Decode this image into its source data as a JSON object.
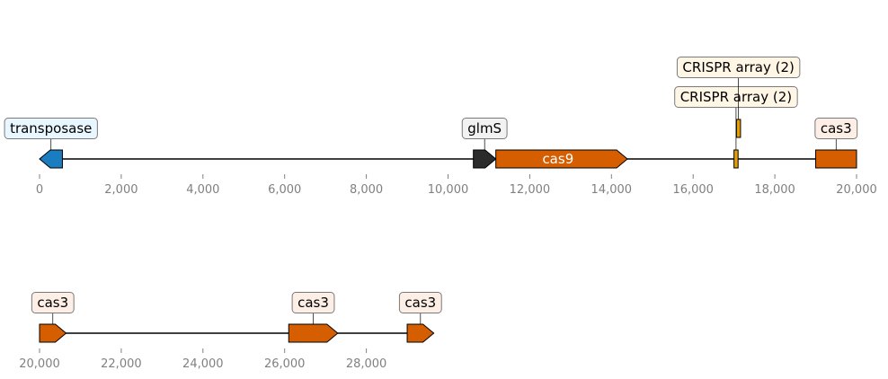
{
  "tracks": [
    {
      "range": [
        0,
        20000
      ],
      "ticks": [
        {
          "value": 0,
          "label": "0"
        },
        {
          "value": 2000,
          "label": "2,000"
        },
        {
          "value": 4000,
          "label": "4,000"
        },
        {
          "value": 6000,
          "label": "6,000"
        },
        {
          "value": 8000,
          "label": "8,000"
        },
        {
          "value": 10000,
          "label": "10,000"
        },
        {
          "value": 12000,
          "label": "12,000"
        },
        {
          "value": 14000,
          "label": "14,000"
        },
        {
          "value": 16000,
          "label": "16,000"
        },
        {
          "value": 18000,
          "label": "18,000"
        },
        {
          "value": 20000,
          "label": "20,000"
        }
      ],
      "features": [
        {
          "name": "transposase",
          "start": 0,
          "end": 560,
          "strand": -1,
          "color": "#1a7dbf",
          "label_bg": "#e8f6ff",
          "label_position": "above"
        },
        {
          "name": "glmS",
          "start": 10620,
          "end": 11170,
          "strand": 1,
          "color": "#2b2b2b",
          "label_bg": "#f2f2f2",
          "label_position": "above"
        },
        {
          "name": "cas9",
          "start": 11170,
          "end": 14390,
          "strand": 1,
          "color": "#d55e00",
          "label_bg": "",
          "label_position": "inside"
        },
        {
          "name": "CRISPR array (2)",
          "start": 17000,
          "end": 17100,
          "strand": 0,
          "color": "#e69f00",
          "label_bg": "#fff6e6",
          "label_position": "above2"
        },
        {
          "name": "CRISPR array (2)",
          "start": 17060,
          "end": 17160,
          "strand": 0,
          "color": "#e69f00",
          "label_bg": "#fff6e6",
          "label_position": "above",
          "elevated": true
        },
        {
          "name": "cas3",
          "start": 19000,
          "end": 20000,
          "strand": 0,
          "color": "#d55e00",
          "label_bg": "#fdeee6",
          "label_position": "above"
        }
      ]
    },
    {
      "range": [
        20000,
        30000
      ],
      "ticks": [
        {
          "value": 20000,
          "label": "20,000"
        },
        {
          "value": 22000,
          "label": "22,000"
        },
        {
          "value": 24000,
          "label": "24,000"
        },
        {
          "value": 26000,
          "label": "26,000"
        },
        {
          "value": 28000,
          "label": "28,000"
        }
      ],
      "line_end": 29650,
      "features": [
        {
          "name": "cas3",
          "start": 20000,
          "end": 20650,
          "strand": 1,
          "color": "#d55e00",
          "label_bg": "#fdeee6",
          "label_position": "above"
        },
        {
          "name": "cas3",
          "start": 26100,
          "end": 27300,
          "strand": 1,
          "color": "#d55e00",
          "label_bg": "#fdeee6",
          "label_position": "above"
        },
        {
          "name": "cas3",
          "start": 29000,
          "end": 29650,
          "strand": 1,
          "color": "#d55e00",
          "label_bg": "#fdeee6",
          "label_position": "above"
        }
      ]
    }
  ]
}
